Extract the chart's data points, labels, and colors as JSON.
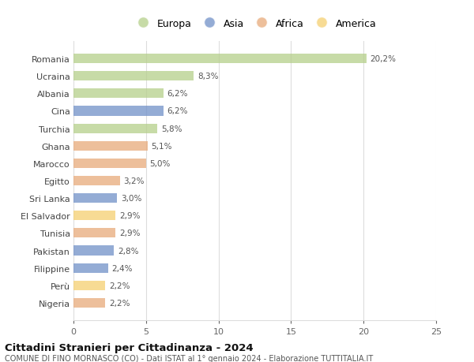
{
  "countries": [
    "Romania",
    "Ucraina",
    "Albania",
    "Cina",
    "Turchia",
    "Ghana",
    "Marocco",
    "Egitto",
    "Sri Lanka",
    "El Salvador",
    "Tunisia",
    "Pakistan",
    "Filippine",
    "Perù",
    "Nigeria"
  ],
  "values": [
    20.2,
    8.3,
    6.2,
    6.2,
    5.8,
    5.1,
    5.0,
    3.2,
    3.0,
    2.9,
    2.9,
    2.8,
    2.4,
    2.2,
    2.2
  ],
  "labels": [
    "20,2%",
    "8,3%",
    "6,2%",
    "6,2%",
    "5,8%",
    "5,1%",
    "5,0%",
    "3,2%",
    "3,0%",
    "2,9%",
    "2,9%",
    "2,8%",
    "2,4%",
    "2,2%",
    "2,2%"
  ],
  "continents": [
    "Europa",
    "Europa",
    "Europa",
    "Asia",
    "Europa",
    "Africa",
    "Africa",
    "Africa",
    "Asia",
    "America",
    "Africa",
    "Asia",
    "Asia",
    "America",
    "Africa"
  ],
  "continent_colors": {
    "Europa": "#b5cf8a",
    "Asia": "#7090c8",
    "Africa": "#e8aa7a",
    "America": "#f5d070"
  },
  "legend_items": [
    "Europa",
    "Asia",
    "Africa",
    "America"
  ],
  "title": "Cittadini Stranieri per Cittadinanza - 2024",
  "subtitle": "COMUNE DI FINO MORNASCO (CO) - Dati ISTAT al 1° gennaio 2024 - Elaborazione TUTTITALIA.IT",
  "xlim": [
    0,
    25
  ],
  "xticks": [
    0,
    5,
    10,
    15,
    20,
    25
  ],
  "bg_color": "#ffffff",
  "grid_color": "#dddddd",
  "bar_alpha": 0.75
}
